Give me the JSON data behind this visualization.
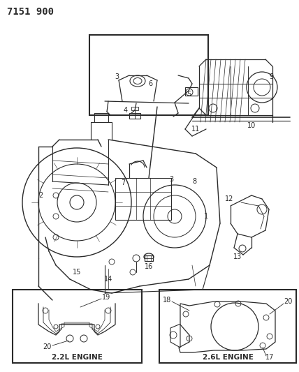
{
  "title": "7151 900",
  "bg_color": "#ffffff",
  "line_color": "#2a2a2a",
  "title_fontsize": 10,
  "label_2l": "2.2L ENGINE",
  "label_26l": "2.6L ENGINE",
  "figsize": [
    4.28,
    5.33
  ],
  "dpi": 100
}
